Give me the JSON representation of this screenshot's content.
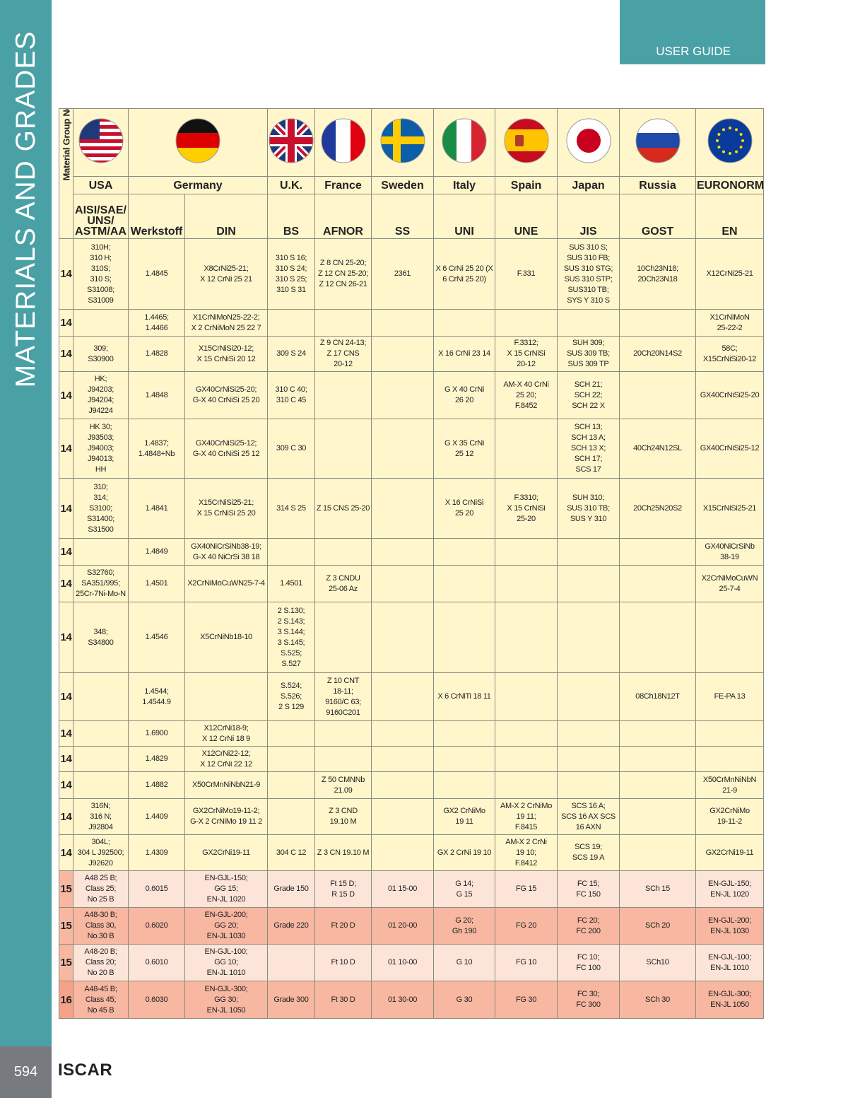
{
  "sidebar": {
    "title": "MATERIALS AND GRADES",
    "page_number": "594",
    "brand": "ISCAR"
  },
  "header": {
    "guide_label": "USER GUIDE"
  },
  "table": {
    "group_header": "Material Group No.",
    "countries": [
      "USA",
      "Germany",
      "U.K.",
      "France",
      "Sweden",
      "Italy",
      "Spain",
      "Japan",
      "Russia",
      "EURONORM"
    ],
    "flags": [
      "usa-flag",
      "germany-flag",
      "uk-flag",
      "france-flag",
      "sweden-flag",
      "italy-flag",
      "spain-flag",
      "japan-flag",
      "russia-flag",
      "eu-flag"
    ],
    "standards": [
      "AISI/SAE/ UNS/ ASTM/AA",
      "Werkstoff",
      "DIN",
      "BS",
      "AFNOR",
      "SS",
      "UNI",
      "UNE",
      "JIS",
      "GOST",
      "EN"
    ],
    "colors": {
      "group14": "#fff6cc",
      "group15_light": "#fde4d8",
      "group15_dark": "#f7b7a1",
      "group16": "#f4a288",
      "sidebar": "#4aa1a5"
    },
    "rows": [
      {
        "group": "14",
        "cells": [
          "310H;\n310 H;\n310S;\n310 S;\nS31008;\nS31009",
          "1.4845",
          "X8CrNi25-21;\nX 12 CrNi 25 21",
          "310 S 16;\n310 S 24;\n310 S 25;\n310 S 31",
          "Z 8 CN 25-20;\nZ 12 CN 25-20;\nZ 12 CN 26-21",
          "2361",
          "X 6 CrNi 25 20 (X\n6 CrNi 25 20)",
          "F.331",
          "SUS 310 S;\nSUS 310 FB;\nSUS 310 STG;\nSUS 310 STP;\nSUS310 TB;\nSYS Y 310 S",
          "10Ch23N18;\n20Ch23N18",
          "X12CrNi25-21"
        ]
      },
      {
        "group": "14",
        "cells": [
          "",
          "1.4465;\n1.4466",
          "X1CrNiMoN25-22-2;\nX 2 CrNiMoN 25 22 7",
          "",
          "",
          "",
          "",
          "",
          "",
          "",
          "X1CrNiMoN\n25-22-2"
        ]
      },
      {
        "group": "14",
        "cells": [
          "309;\nS30900",
          "1.4828",
          "X15CrNiSi20-12;\nX 15 CrNiSi 20 12",
          "309 S 24",
          "Z 9 CN 24-13;\nZ 17 CNS\n20-12",
          "",
          "X 16 CrNi 23 14",
          "F.3312;\nX 15 CrNiSi\n20-12",
          "SUH 309;\nSUS 309 TB;\nSUS 309 TP",
          "20Ch20N14S2",
          "58C;\nX15CrNiSi20-12"
        ]
      },
      {
        "group": "14",
        "cells": [
          "HK;\nJ94203;\nJ94204;\nJ94224",
          "1.4848",
          "GX40CrNiSi25-20;\nG-X 40 CrNiSi 25 20",
          "310 C 40;\n310 C 45",
          "",
          "",
          "G X 40 CrNi\n26 20",
          "AM-X 40 CrNi\n25 20;\nF.8452",
          "SCH 21;\nSCH 22;\nSCH 22 X",
          "",
          "GX40CrNiSi25-20"
        ]
      },
      {
        "group": "14",
        "cells": [
          "HK 30;\nJ93503;\nJ94003;\nJ94013;\nHH",
          "1.4837;\n1.4848+Nb",
          "GX40CrNiSi25-12;\nG-X 40 CrNiSi 25 12",
          "309 C 30",
          "",
          "",
          "G X 35 CrNi\n25 12",
          "",
          "SCH 13;\nSCH 13 A;\nSCH 13 X;\nSCH 17;\nSCS 17",
          "40Ch24N12SL",
          "GX40CrNiSi25-12"
        ]
      },
      {
        "group": "14",
        "cells": [
          "310;\n314;\nS3100;\nS31400;\nS31500",
          "1.4841",
          "X15CrNiSi25-21;\nX 15 CrNiSi 25 20",
          "314 S 25",
          "Z 15 CNS 25-20",
          "",
          "X 16 CrNiSi\n25 20",
          "F.3310;\nX 15 CrNiSi\n25-20",
          "SUH 310;\nSUS 310 TB;\nSUS Y 310",
          "20Ch25N20S2",
          "X15CrNiSi25-21"
        ]
      },
      {
        "group": "14",
        "cells": [
          "",
          "1.4849",
          "GX40NiCrSiNb38-19;\nG-X 40 NiCrSi 38 18",
          "",
          "",
          "",
          "",
          "",
          "",
          "",
          "GX40NiCrSiNb\n38-19"
        ]
      },
      {
        "group": "14",
        "cells": [
          "S32760;\nSA351/995;\n25Cr-7Ni-Mo-N",
          "1.4501",
          "X2CrNiMoCuWN25-7-4",
          "1.4501",
          "Z 3 CNDU\n25-06 Az",
          "",
          "",
          "",
          "",
          "",
          "X2CrNiMoCuWN\n25-7-4"
        ]
      },
      {
        "group": "14",
        "cells": [
          "348;\nS34800",
          "1.4546",
          "X5CrNiNb18-10",
          "2 S.130;\n2 S.143;\n3 S.144;\n3 S.145;\nS.525;\nS.527",
          "",
          "",
          "",
          "",
          "",
          "",
          ""
        ]
      },
      {
        "group": "14",
        "cells": [
          "",
          "1.4544;\n1.4544.9",
          "",
          "S.524;\nS.526;\n2 S 129",
          "Z 10 CNT\n18-11;\n9160/C 63;\n9160C201",
          "",
          "X 6 CrNiTi 18 11",
          "",
          "",
          "08Ch18N12T",
          "FE-PA 13"
        ]
      },
      {
        "group": "14",
        "cells": [
          "",
          "1.6900",
          "X12CrNi18-9;\nX 12 CrNi 18 9",
          "",
          "",
          "",
          "",
          "",
          "",
          "",
          ""
        ]
      },
      {
        "group": "14",
        "cells": [
          "",
          "1.4829",
          "X12CrNi22-12;\nX 12 CrNi 22 12",
          "",
          "",
          "",
          "",
          "",
          "",
          "",
          ""
        ]
      },
      {
        "group": "14",
        "cells": [
          "",
          "1.4882",
          "X50CrMnNiNbN21-9",
          "",
          "Z 50 CMNNb\n21.09",
          "",
          "",
          "",
          "",
          "",
          "X50CrMnNiNbN\n21-9"
        ]
      },
      {
        "group": "14",
        "cells": [
          "316N;\n316 N;\nJ92804",
          "1.4409",
          "GX2CrNiMo19-11-2;\nG-X 2 CrNiMo 19 11 2",
          "",
          "Z 3 CND\n19.10 M",
          "",
          "GX2 CrNiMo\n19 11",
          "AM-X 2 CrNiMo\n19 11;\nF.8415",
          "SCS 16 A;\nSCS 16 AX SCS\n16 AXN",
          "",
          "GX2CrNiMo\n19-11-2"
        ]
      },
      {
        "group": "14",
        "cells": [
          "304L;\n304 L J92500;\nJ92620",
          "1.4309",
          "GX2CrNi19-11",
          "304 C 12",
          "Z 3 CN 19.10 M",
          "",
          "GX 2 CrNi 19 10",
          "AM-X 2 CrNi\n19 10;\nF.8412",
          "SCS 19;\nSCS 19 A",
          "",
          "GX2CrNi19-11"
        ]
      },
      {
        "group": "15",
        "cells": [
          "A48 25 B;\nClass 25;\nNo 25 B",
          "0.6015",
          "EN-GJL-150;\nGG 15;\nEN-JL 1020",
          "Grade 150",
          "Ft 15 D;\nR 15 D",
          "01 15-00",
          "G 14;\nG 15",
          "FG 15",
          "FC 15;\nFC 150",
          "SCh 15",
          "EN-GJL-150;\nEN-JL 1020"
        ]
      },
      {
        "group": "15",
        "cells": [
          "A48-30 B;\nClass 30,\nNo.30 B",
          "0.6020",
          "EN-GJL-200;\nGG 20;\nEN-JL 1030",
          "Grade 220",
          "Ft 20 D",
          "01 20-00",
          "G 20;\nGh 190",
          "FG 20",
          "FC 20;\nFC 200",
          "SCh 20",
          "EN-GJL-200;\nEN-JL 1030"
        ]
      },
      {
        "group": "15",
        "cells": [
          "A48-20 B;\nClass 20;\nNo 20 B",
          "0.6010",
          "EN-GJL-100;\nGG 10;\nEN-JL 1010",
          "",
          "Ft 10 D",
          "01 10-00",
          "G 10",
          "FG 10",
          "FC 10;\nFC 100",
          "SCh10",
          "EN-GJL-100;\nEN-JL 1010"
        ]
      },
      {
        "group": "16",
        "cells": [
          "A48-45 B;\nClass 45;\nNo 45 B",
          "0.6030",
          "EN-GJL-300;\nGG 30;\nEN-JL 1050",
          "Grade 300",
          "Ft 30 D",
          "01 30-00",
          "G 30",
          "FG 30",
          "FC 30;\nFC 300",
          "SCh 30",
          "EN-GJL-300;\nEN-JL 1050"
        ]
      }
    ]
  }
}
